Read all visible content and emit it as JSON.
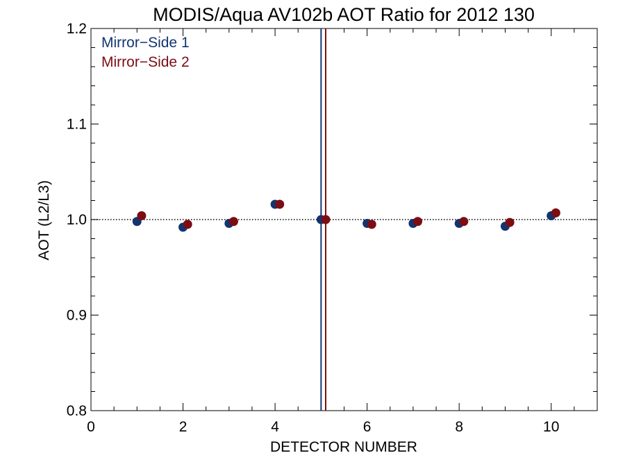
{
  "chart_data": {
    "type": "scatter",
    "title": "MODIS/Aqua AV102b AOT Ratio for 2012 130",
    "xlabel": "DETECTOR NUMBER",
    "ylabel": "AOT (L2/L3)",
    "xlim": [
      0,
      11
    ],
    "ylim": [
      0.8,
      1.2
    ],
    "x_ticks": [
      {
        "value": 0,
        "label": "0"
      },
      {
        "value": 2,
        "label": "2"
      },
      {
        "value": 4,
        "label": "4"
      },
      {
        "value": 6,
        "label": "6"
      },
      {
        "value": 8,
        "label": "8"
      },
      {
        "value": 10,
        "label": "10"
      }
    ],
    "y_ticks": [
      {
        "value": 0.8,
        "label": "0.8"
      },
      {
        "value": 0.9,
        "label": "0.9"
      },
      {
        "value": 1.0,
        "label": "1.0"
      },
      {
        "value": 1.1,
        "label": "1.1"
      },
      {
        "value": 1.2,
        "label": "1.2"
      }
    ],
    "reference_line_y": 1.0,
    "series": [
      {
        "name": "Mirror−Side 1",
        "color": "#123570",
        "x": [
          1,
          2,
          3,
          4,
          5,
          6,
          7,
          8,
          9,
          10
        ],
        "y": [
          0.998,
          0.992,
          0.996,
          1.016,
          1.0,
          0.996,
          0.996,
          0.996,
          0.993,
          1.004
        ]
      },
      {
        "name": "Mirror−Side 2",
        "color": "#7b0d13",
        "x": [
          1.1,
          2.1,
          3.1,
          4.1,
          5.1,
          6.1,
          7.1,
          8.1,
          9.1,
          10.1
        ],
        "y": [
          1.004,
          0.995,
          0.998,
          1.016,
          1.0,
          0.995,
          0.998,
          0.998,
          0.997,
          1.007
        ]
      }
    ],
    "vertical_lines": [
      {
        "x": 5.0,
        "color": "#123570"
      },
      {
        "x": 5.1,
        "color": "#7b0d13"
      }
    ],
    "legend_position": "top-left",
    "grid": false
  }
}
